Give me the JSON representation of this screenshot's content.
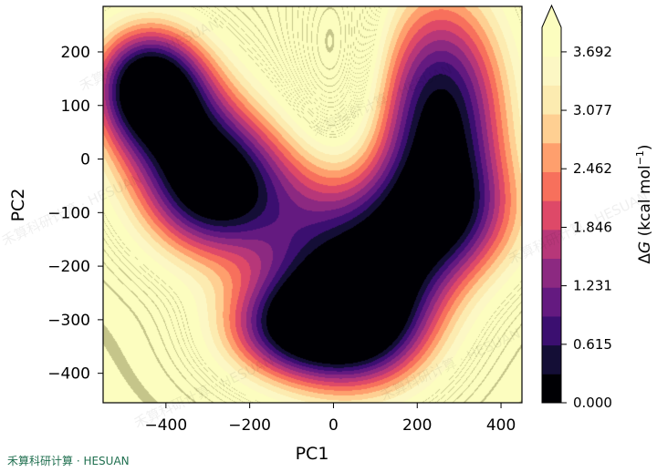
{
  "chart_data": {
    "type": "heatmap",
    "subtype": "filled-contour",
    "xlabel": "PC1",
    "ylabel": "PC2",
    "xlim": [
      -550,
      450
    ],
    "ylim": [
      -455,
      285
    ],
    "xticks": [
      -400,
      -200,
      0,
      200,
      400
    ],
    "yticks": [
      -400,
      -300,
      -200,
      -100,
      0,
      100,
      200
    ],
    "xtick_labels": [
      "−400",
      "−200",
      "0",
      "200",
      "400"
    ],
    "ytick_labels": [
      "−400",
      "−300",
      "−200",
      "−100",
      "0",
      "100",
      "200"
    ],
    "colorbar": {
      "label_main": "Δ",
      "label_var": "G",
      "label_unit": " (kcal mol",
      "label_sup": "−1",
      "label_end": ")",
      "range": [
        0.0,
        3.95
      ],
      "extend": "max",
      "tick_values": [
        0.0,
        0.615,
        1.231,
        1.846,
        2.462,
        3.077,
        3.692
      ],
      "tick_labels": [
        "0.000",
        "0.615",
        "1.231",
        "1.846",
        "2.462",
        "3.077",
        "3.692"
      ],
      "levels": 13
    },
    "colormap": [
      "#000004",
      "#140e36",
      "#3b0f70",
      "#641a80",
      "#8c2981",
      "#b73779",
      "#de4968",
      "#f7705c",
      "#fe9f6d",
      "#fecf92",
      "#fcebb0",
      "#fcf7c4",
      "#fcfdbf"
    ],
    "minima": [
      {
        "x": -445,
        "y": 140,
        "depth": 0.05
      },
      {
        "x": -275,
        "y": -60,
        "depth": 0.5
      },
      {
        "x": 255,
        "y": 75,
        "depth": 0.05
      },
      {
        "x": 75,
        "y": -320,
        "depth": 0.75
      },
      {
        "x": -120,
        "y": -315,
        "depth": 1.3
      }
    ],
    "grid": false
  },
  "watermark": "禾算科研计算 · HESUAN"
}
